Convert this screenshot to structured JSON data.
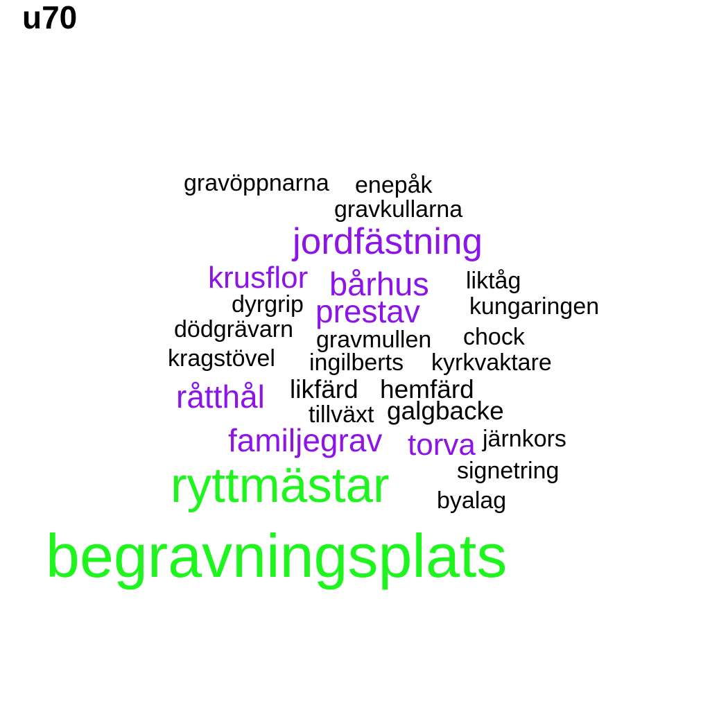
{
  "title": "u70",
  "colors": {
    "green": "#1ef51e",
    "purple": "#8c14e6",
    "black": "#000000"
  },
  "words": {
    "begravningsplats": "begravningsplats",
    "ryttmastar": "ryttmästar",
    "jordfastning": "jordfästning",
    "barhus": "bårhus",
    "prestav": "prestav",
    "krusflor": "krusflor",
    "ratthal": "råtthål",
    "familjegrav": "familjegrav",
    "torva": "torva",
    "gravoppnarna": "gravöppnarna",
    "enepak": "enepåk",
    "gravkullarna": "gravkullarna",
    "liktag": "liktåg",
    "dyrgrip": "dyrgrip",
    "kungaringen": "kungaringen",
    "dodgravarn": "dödgrävarn",
    "gravmullen": "gravmullen",
    "chock": "chock",
    "kragstovel": "kragstövel",
    "ingilberts": "ingilberts",
    "kyrkvaktare": "kyrkvaktare",
    "likfard": "likfärd",
    "hemfard": "hemfärd",
    "tillvaxt": "tillväxt",
    "galgbacke": "galgbacke",
    "jarnkors": "järnkors",
    "signetring": "signetring",
    "byalag": "byalag"
  }
}
